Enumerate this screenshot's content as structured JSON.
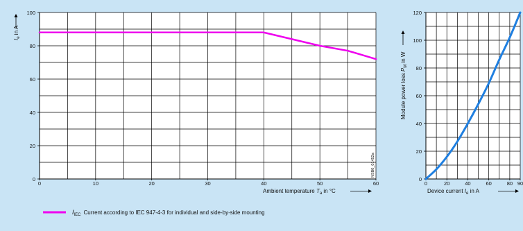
{
  "chart_data": [
    {
      "type": "line",
      "id": "left",
      "xlabel": {
        "pre": "Ambient temperature ",
        "sym": "T",
        "sub": "a",
        "post": " in °C"
      },
      "ylabel": {
        "sym": "I",
        "sub": "e",
        "post": " in A"
      },
      "xticks": [
        0,
        10,
        20,
        30,
        40,
        50,
        60
      ],
      "yticks": [
        0,
        20,
        40,
        60,
        80,
        100
      ],
      "xlim": [
        0,
        60
      ],
      "ylim": [
        0,
        100
      ],
      "grid": true,
      "series": [
        {
          "color": "#ee00ee",
          "points": [
            [
              0,
              88
            ],
            [
              40,
              88
            ],
            [
              50,
              80
            ],
            [
              55,
              77
            ],
            [
              60,
              72
            ]
          ]
        }
      ],
      "watermark": "NSB0_01452a",
      "legend": {
        "symbol": "I",
        "sub": "IEC",
        "text": "Current according to IEC 947-4-3 for individual and side-by-side mounting",
        "color": "#ee00ee"
      }
    },
    {
      "type": "line",
      "id": "right",
      "xlabel": {
        "pre": "Device current ",
        "sym": "I",
        "sub": "e",
        "post": " in A"
      },
      "ylabel": {
        "pre": "Module power loss ",
        "sym": "P",
        "sub": "M",
        "post": " in W"
      },
      "xticks": [
        "0",
        "20",
        "40",
        "60",
        "80",
        "90"
      ],
      "yticks": [
        0,
        20,
        40,
        60,
        80,
        100,
        120
      ],
      "xlim": [
        0,
        90
      ],
      "ylim": [
        0,
        120
      ],
      "grid": true,
      "series": [
        {
          "color": "#1f7fe0",
          "points": [
            [
              0,
              0
            ],
            [
              10,
              7
            ],
            [
              20,
              16
            ],
            [
              30,
              27
            ],
            [
              40,
              40
            ],
            [
              50,
              54
            ],
            [
              60,
              69
            ],
            [
              70,
              86
            ],
            [
              80,
              102
            ],
            [
              90,
              120
            ]
          ]
        }
      ]
    }
  ]
}
